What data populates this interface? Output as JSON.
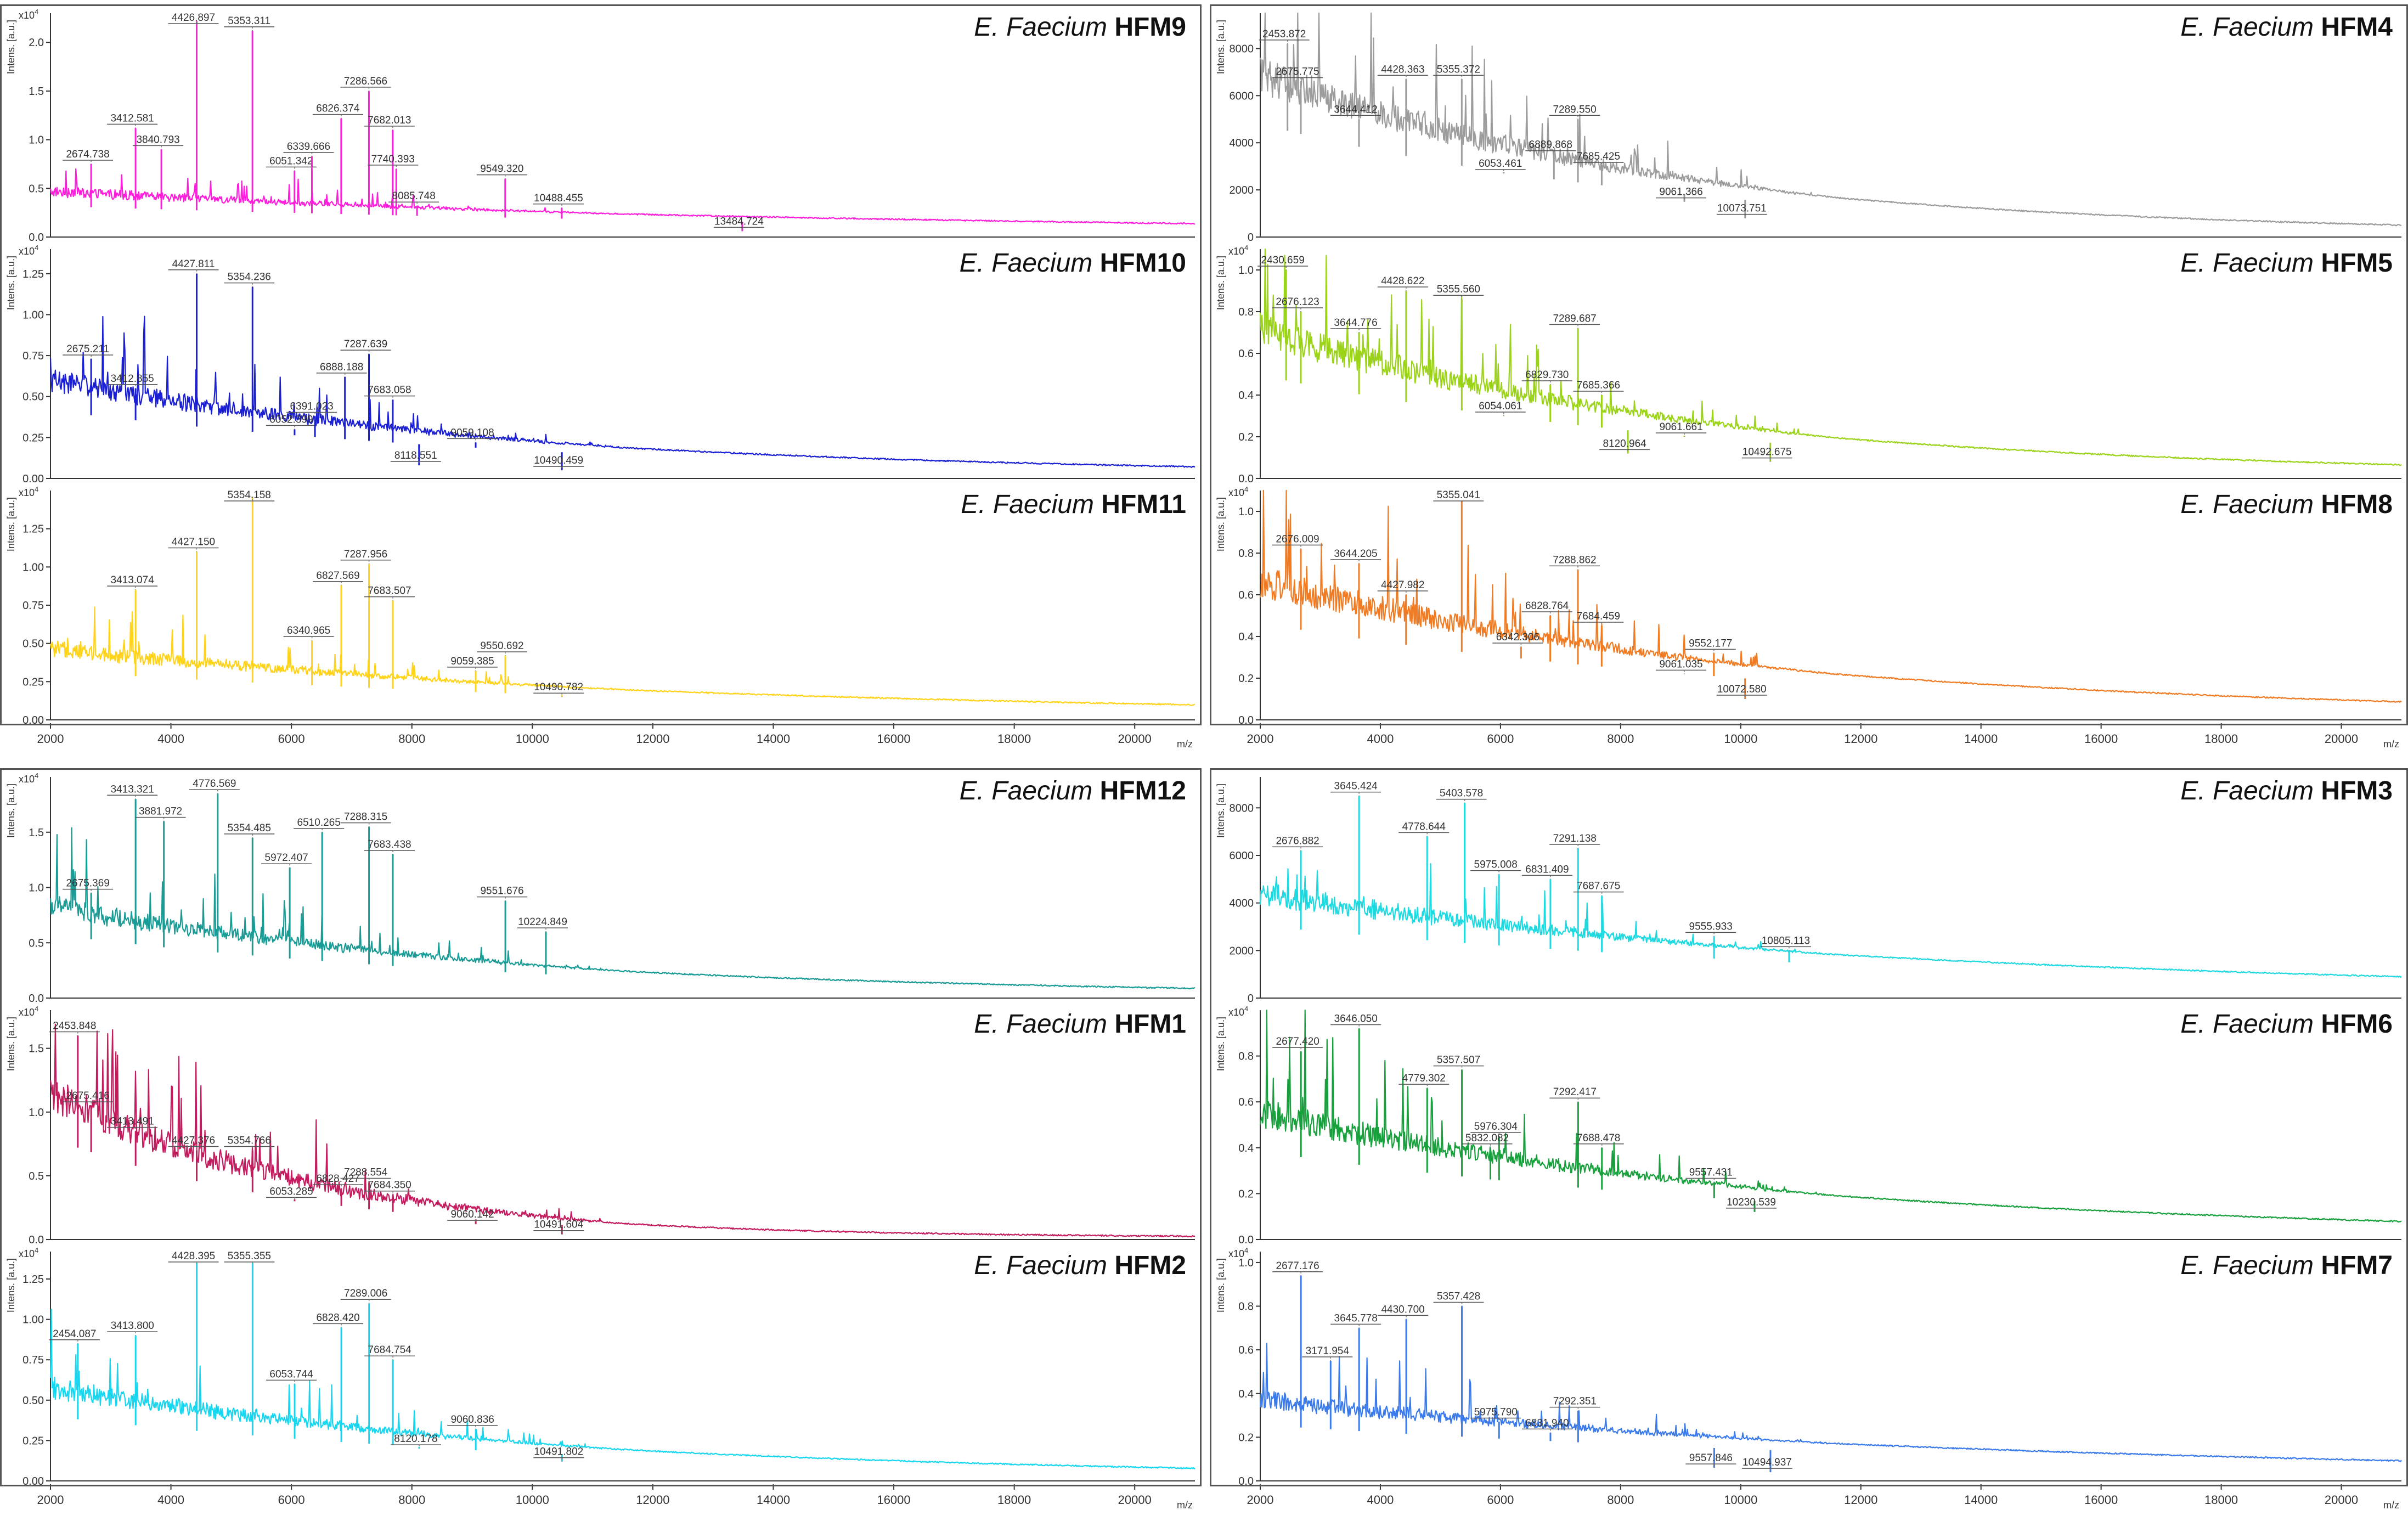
{
  "figure": {
    "species": "E. Faecium",
    "yaxis_label": "Intens. [a.u.]",
    "exponent_label": "x10",
    "exponent_power": "4",
    "xaxis_label": "m/z",
    "frame_color": "#555555"
  },
  "chart_data": [
    {
      "type": "line",
      "strain": "HFM9",
      "color": "#ff1ddc",
      "ymax": 2.3,
      "yunit": "x10^4",
      "yticks": [
        0,
        0.5,
        1.0,
        1.5,
        2.0
      ],
      "ytick_labels": [
        "0.0",
        "0.5",
        "1.0",
        "1.5",
        "2.0"
      ],
      "xlim": [
        2000,
        21000
      ],
      "base": [
        0.4,
        0.25
      ],
      "peaks": [
        [
          2674.738,
          0.75
        ],
        [
          3412.581,
          1.12
        ],
        [
          3840.793,
          0.9
        ],
        [
          4426.897,
          2.22
        ],
        [
          5353.311,
          2.12
        ],
        [
          6051.342,
          0.68
        ],
        [
          6339.666,
          0.83
        ],
        [
          6826.374,
          1.22
        ],
        [
          7286.566,
          1.5
        ],
        [
          7682.013,
          1.1
        ],
        [
          7740.393,
          0.7
        ],
        [
          8085.748,
          0.32
        ],
        [
          9549.32,
          0.6
        ],
        [
          10488.455,
          0.3
        ],
        [
          13484.724,
          0.06
        ]
      ]
    },
    {
      "type": "line",
      "strain": "HFM10",
      "color": "#1a1fd4",
      "ymax": 1.4,
      "yunit": "x10^4",
      "yticks": [
        0,
        0.25,
        0.5,
        0.75,
        1.0,
        1.25
      ],
      "ytick_labels": [
        "0.00",
        "0.25",
        "0.50",
        "0.75",
        "1.00",
        "1.25"
      ],
      "xlim": [
        2000,
        21000
      ],
      "base": [
        0.52,
        0.45
      ],
      "peaks": [
        [
          2675.211,
          0.73
        ],
        [
          3412.855,
          0.55
        ],
        [
          4427.811,
          1.25
        ],
        [
          5354.236,
          1.17
        ],
        [
          6052.399,
          0.3
        ],
        [
          6391.023,
          0.38
        ],
        [
          6888.188,
          0.62
        ],
        [
          7287.639,
          0.76
        ],
        [
          7683.058,
          0.48
        ],
        [
          8118.551,
          0.08
        ],
        [
          9059.108,
          0.22
        ],
        [
          10490.459,
          0.05
        ]
      ]
    },
    {
      "type": "line",
      "strain": "HFM11",
      "color": "#ffd31a",
      "ymax": 1.5,
      "yunit": "x10^4",
      "yticks": [
        0,
        0.25,
        0.5,
        0.75,
        1.0,
        1.25
      ],
      "ytick_labels": [
        "0.00",
        "0.25",
        "0.50",
        "0.75",
        "1.00",
        "1.25"
      ],
      "xlim": [
        2000,
        21000
      ],
      "base": [
        0.4,
        0.32
      ],
      "peaks": [
        [
          3413.074,
          0.85
        ],
        [
          4427.15,
          1.1
        ],
        [
          5354.158,
          1.46
        ],
        [
          6340.965,
          0.52
        ],
        [
          6827.569,
          0.88
        ],
        [
          7287.956,
          1.02
        ],
        [
          7683.507,
          0.78
        ],
        [
          9059.385,
          0.32
        ],
        [
          9550.692,
          0.42
        ],
        [
          10490.782,
          0.15
        ]
      ]
    },
    {
      "type": "line",
      "strain": "HFM12",
      "color": "#1a9c96",
      "ymax": 2.0,
      "yunit": "x10^4",
      "yticks": [
        0,
        0.5,
        1.0,
        1.5
      ],
      "ytick_labels": [
        "0.0",
        "0.5",
        "1.0",
        "1.5"
      ],
      "xlim": [
        2000,
        21000
      ],
      "base": [
        0.72,
        0.48
      ],
      "peaks": [
        [
          2675.369,
          0.95
        ],
        [
          3413.321,
          1.8
        ],
        [
          3881.972,
          1.6
        ],
        [
          4776.569,
          1.85
        ],
        [
          5354.485,
          1.45
        ],
        [
          5972.407,
          1.18
        ],
        [
          6510.265,
          1.5
        ],
        [
          7288.315,
          1.55
        ],
        [
          7683.438,
          1.3
        ],
        [
          9551.676,
          0.88
        ],
        [
          10224.849,
          0.6
        ]
      ]
    },
    {
      "type": "line",
      "strain": "HFM1",
      "color": "#c41b5f",
      "ymax": 1.8,
      "yunit": "x10^4",
      "yticks": [
        0,
        0.5,
        1.0,
        1.5
      ],
      "ytick_labels": [
        "0.0",
        "0.5",
        "1.0",
        "1.5"
      ],
      "xlim": [
        2000,
        21000
      ],
      "base": [
        1.0,
        0.92
      ],
      "peaks": [
        [
          2453.848,
          1.6
        ],
        [
          2675.416,
          1.05
        ],
        [
          3413.491,
          0.85
        ],
        [
          4427.376,
          0.7
        ],
        [
          5354.766,
          0.7
        ],
        [
          6053.285,
          0.3
        ],
        [
          6828.427,
          0.4
        ],
        [
          7288.554,
          0.45
        ],
        [
          7684.35,
          0.35
        ],
        [
          9060.142,
          0.12
        ],
        [
          10491.604,
          0.04
        ]
      ]
    },
    {
      "type": "line",
      "strain": "HFM2",
      "color": "#17d7f0",
      "ymax": 1.42,
      "yunit": "x10^4",
      "yticks": [
        0,
        0.25,
        0.5,
        0.75,
        1.0,
        1.25
      ],
      "ytick_labels": [
        "0.00",
        "0.25",
        "0.50",
        "0.75",
        "1.00",
        "1.25"
      ],
      "xlim": [
        2000,
        21000
      ],
      "base": [
        0.5,
        0.42
      ],
      "peaks": [
        [
          2454.087,
          0.85
        ],
        [
          3413.8,
          0.9
        ],
        [
          4428.395,
          1.35
        ],
        [
          5355.355,
          1.35
        ],
        [
          6053.744,
          0.6
        ],
        [
          6828.42,
          0.95
        ],
        [
          7289.006,
          1.1
        ],
        [
          7684.754,
          0.75
        ],
        [
          8120.178,
          0.2
        ],
        [
          9060.836,
          0.32
        ],
        [
          10491.802,
          0.12
        ]
      ]
    },
    {
      "type": "line",
      "strain": "HFM4",
      "color": "#9c9c9c",
      "ymax": 9500,
      "yunit": "a.u.",
      "yticks": [
        0,
        2000,
        4000,
        6000,
        8000
      ],
      "ytick_labels": [
        "0",
        "2000",
        "4000",
        "6000",
        "8000"
      ],
      "xlim": [
        2000,
        21000
      ],
      "base": [
        6000,
        0.55
      ],
      "peaks": [
        [
          2453.872,
          8200
        ],
        [
          2675.775,
          6600
        ],
        [
          3644.412,
          5000
        ],
        [
          4428.363,
          6700
        ],
        [
          5355.372,
          6700
        ],
        [
          6053.461,
          2700
        ],
        [
          6889.868,
          3500
        ],
        [
          7289.55,
          5000
        ],
        [
          7685.425,
          3000
        ],
        [
          9061.366,
          1500
        ],
        [
          10073.751,
          800
        ]
      ]
    },
    {
      "type": "line",
      "strain": "HFM5",
      "color": "#9ad317",
      "ymax": 1.1,
      "yunit": "x10^4",
      "yticks": [
        0,
        0.2,
        0.4,
        0.6,
        0.8,
        1.0
      ],
      "ytick_labels": [
        "0.0",
        "0.2",
        "0.4",
        "0.6",
        "0.8",
        "1.0"
      ],
      "xlim": [
        2000,
        21000
      ],
      "base": [
        0.62,
        0.5
      ],
      "peaks": [
        [
          2430.659,
          1.0
        ],
        [
          2676.123,
          0.8
        ],
        [
          3644.776,
          0.7
        ],
        [
          4428.622,
          0.9
        ],
        [
          5355.56,
          0.86
        ],
        [
          6054.061,
          0.3
        ],
        [
          6829.73,
          0.45
        ],
        [
          7289.687,
          0.72
        ],
        [
          7685.366,
          0.4
        ],
        [
          8120.964,
          0.12
        ],
        [
          9061.661,
          0.2
        ],
        [
          10492.675,
          0.08
        ]
      ]
    },
    {
      "type": "line",
      "strain": "HFM8",
      "color": "#f07b22",
      "ymax": 1.1,
      "yunit": "x10^4",
      "yticks": [
        0,
        0.2,
        0.4,
        0.6,
        0.8,
        1.0
      ],
      "ytick_labels": [
        "0.0",
        "0.2",
        "0.4",
        "0.6",
        "0.8",
        "1.0"
      ],
      "xlim": [
        2000,
        21000
      ],
      "base": [
        0.58,
        0.42
      ],
      "peaks": [
        [
          2676.009,
          0.82
        ],
        [
          3644.205,
          0.75
        ],
        [
          4427.982,
          0.6
        ],
        [
          5355.041,
          1.05
        ],
        [
          6342.306,
          0.35
        ],
        [
          6828.764,
          0.5
        ],
        [
          7288.862,
          0.72
        ],
        [
          7684.459,
          0.45
        ],
        [
          9061.035,
          0.22
        ],
        [
          9552.177,
          0.32
        ],
        [
          10072.58,
          0.1
        ]
      ]
    },
    {
      "type": "line",
      "strain": "HFM3",
      "color": "#1fd9e0",
      "ymax": 9300,
      "yunit": "a.u.",
      "yticks": [
        0,
        2000,
        4000,
        6000,
        8000
      ],
      "ytick_labels": [
        "0",
        "2000",
        "4000",
        "6000",
        "8000"
      ],
      "xlim": [
        2000,
        21000
      ],
      "base": [
        3800,
        0.32
      ],
      "peaks": [
        [
          2676.882,
          6200
        ],
        [
          3645.424,
          8500
        ],
        [
          4778.644,
          6800
        ],
        [
          5403.578,
          8200
        ],
        [
          5975.008,
          5200
        ],
        [
          6831.409,
          5000
        ],
        [
          7291.138,
          6300
        ],
        [
          7687.675,
          4300
        ],
        [
          9555.933,
          2600
        ],
        [
          10805.113,
          2000
        ]
      ]
    },
    {
      "type": "line",
      "strain": "HFM6",
      "color": "#17a03c",
      "ymax": 1.0,
      "yunit": "x10^4",
      "yticks": [
        0,
        0.2,
        0.4,
        0.6,
        0.8
      ],
      "ytick_labels": [
        "0.0",
        "0.2",
        "0.4",
        "0.6",
        "0.8"
      ],
      "xlim": [
        2000,
        21000
      ],
      "base": [
        0.48,
        0.4
      ],
      "peaks": [
        [
          2677.42,
          0.82
        ],
        [
          3646.05,
          0.92
        ],
        [
          4779.302,
          0.66
        ],
        [
          5357.507,
          0.74
        ],
        [
          5976.304,
          0.45
        ],
        [
          5832.082,
          0.4
        ],
        [
          7292.417,
          0.6
        ],
        [
          7688.478,
          0.4
        ],
        [
          9557.431,
          0.25
        ],
        [
          10230.539,
          0.12
        ]
      ]
    },
    {
      "type": "line",
      "strain": "HFM7",
      "color": "#3a7aeb",
      "ymax": 1.05,
      "yunit": "x10^4",
      "yticks": [
        0,
        0.2,
        0.4,
        0.6,
        0.8,
        1.0
      ],
      "ytick_labels": [
        "0.0",
        "0.2",
        "0.4",
        "0.6",
        "0.8",
        "1.0"
      ],
      "xlim": [
        2000,
        21000
      ],
      "base": [
        0.32,
        0.28
      ],
      "peaks": [
        [
          2677.176,
          0.94
        ],
        [
          3171.954,
          0.55
        ],
        [
          3645.778,
          0.7
        ],
        [
          4430.7,
          0.74
        ],
        [
          5357.428,
          0.8
        ],
        [
          5975.79,
          0.27
        ],
        [
          6831.94,
          0.22
        ],
        [
          7292.351,
          0.32
        ],
        [
          9557.846,
          0.06
        ],
        [
          10494.937,
          0.04
        ]
      ]
    }
  ],
  "xaxis": {
    "ticks": [
      2000,
      4000,
      6000,
      8000,
      10000,
      12000,
      14000,
      16000,
      18000,
      20000
    ],
    "tick_labels": [
      "2000",
      "4000",
      "6000",
      "8000",
      "10000",
      "12000",
      "14000",
      "16000",
      "18000",
      "20000"
    ]
  }
}
